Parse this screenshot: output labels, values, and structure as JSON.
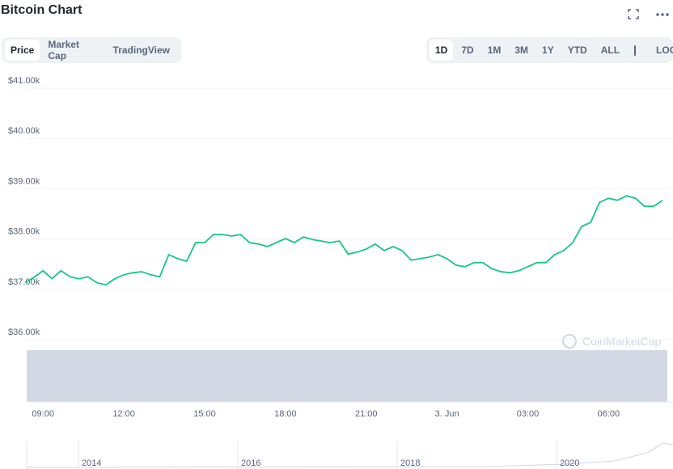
{
  "header": {
    "title": "Bitcoin Chart"
  },
  "tabs": [
    "Price",
    "Market Cap",
    "TradingView"
  ],
  "ranges": [
    "1D",
    "7D",
    "1M",
    "3M",
    "1Y",
    "YTD",
    "ALL"
  ],
  "log": "LOG",
  "watermark": "CoinMarketCap",
  "navigator": {
    "labels": [
      "2014",
      "2016",
      "2018",
      "2020"
    ]
  },
  "chart_data": {
    "type": "line",
    "color": "#16c784",
    "categories": [
      null,
      null,
      "09:00",
      null,
      null,
      null,
      null,
      null,
      null,
      null,
      null,
      "12:00",
      null,
      null,
      null,
      null,
      null,
      null,
      null,
      null,
      "15:00",
      null,
      null,
      null,
      null,
      null,
      null,
      null,
      null,
      "18:00",
      null,
      null,
      null,
      null,
      null,
      null,
      null,
      null,
      "21:00",
      null,
      null,
      null,
      null,
      null,
      null,
      null,
      null,
      "3. Jun",
      null,
      null,
      null,
      null,
      null,
      null,
      null,
      null,
      "03:00",
      null,
      null,
      null,
      null,
      null,
      null,
      null,
      null,
      "06:00",
      null,
      null,
      null,
      null,
      null,
      null
    ],
    "values": [
      37130,
      37240,
      37370,
      37210,
      37370,
      37250,
      37210,
      37250,
      37130,
      37090,
      37210,
      37290,
      37330,
      37350,
      37290,
      37250,
      37690,
      37610,
      37560,
      37930,
      37930,
      38090,
      38090,
      38060,
      38090,
      37930,
      37900,
      37850,
      37930,
      38010,
      37930,
      38040,
      37990,
      37960,
      37930,
      37960,
      37700,
      37740,
      37800,
      37900,
      37770,
      37850,
      37770,
      37580,
      37610,
      37640,
      37690,
      37610,
      37480,
      37450,
      37530,
      37530,
      37410,
      37350,
      37330,
      37370,
      37450,
      37530,
      37530,
      37690,
      37770,
      37930,
      38250,
      38330,
      38730,
      38810,
      38770,
      38860,
      38810,
      38650,
      38650,
      38770
    ],
    "ylim": [
      36000,
      41000
    ],
    "yticks": [
      {
        "value": 36000,
        "label": "$36.00k"
      },
      {
        "value": 37000,
        "label": "$37.00k"
      },
      {
        "value": 38000,
        "label": "$38.00k"
      },
      {
        "value": 39000,
        "label": "$39.00k"
      },
      {
        "value": 40000,
        "label": "$40.00k"
      },
      {
        "value": 41000,
        "label": "$41.00k"
      }
    ],
    "grid": true
  }
}
